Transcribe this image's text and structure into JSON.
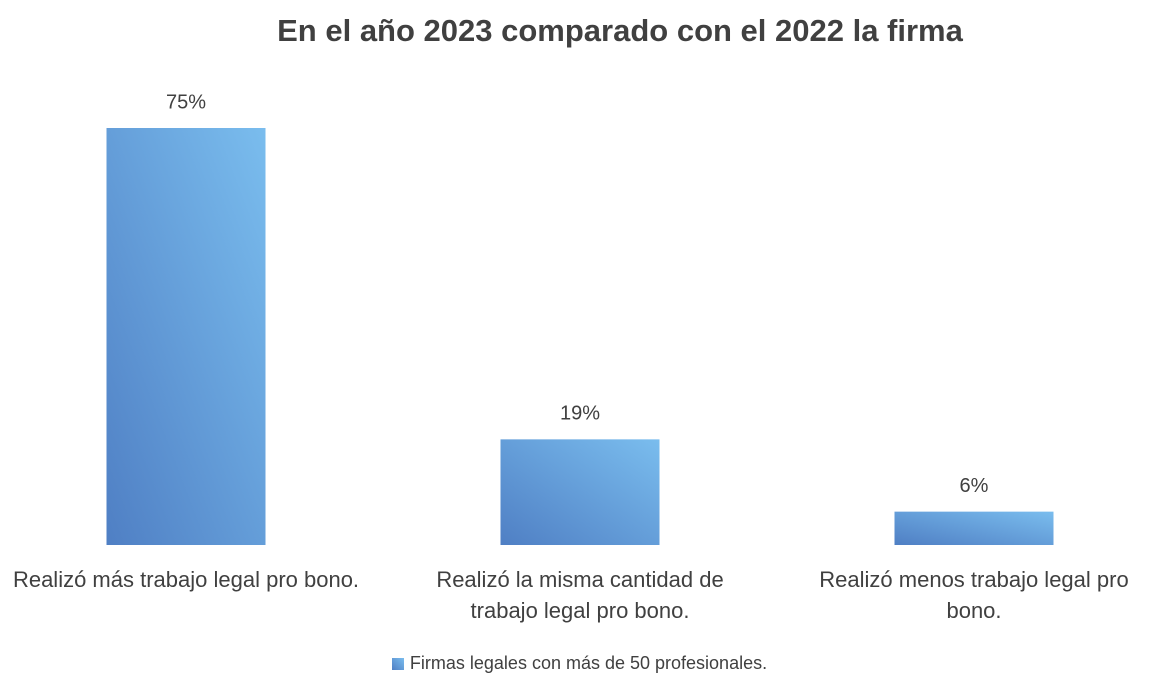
{
  "chart_data": {
    "type": "bar",
    "title": "En el año 2023 comparado con el 2022 la firma",
    "categories": [
      "Realizó más trabajo legal pro bono.",
      "Realizó la misma cantidad de trabajo legal pro bono.",
      "Realizó menos trabajo legal pro bono."
    ],
    "series": [
      {
        "name": "Firmas legales con más de 50 profesionales.",
        "color": "#7abdee",
        "values": [
          75,
          19,
          6
        ],
        "value_labels": [
          "75%",
          "19%",
          "6%"
        ]
      }
    ],
    "legend": "bottom"
  }
}
